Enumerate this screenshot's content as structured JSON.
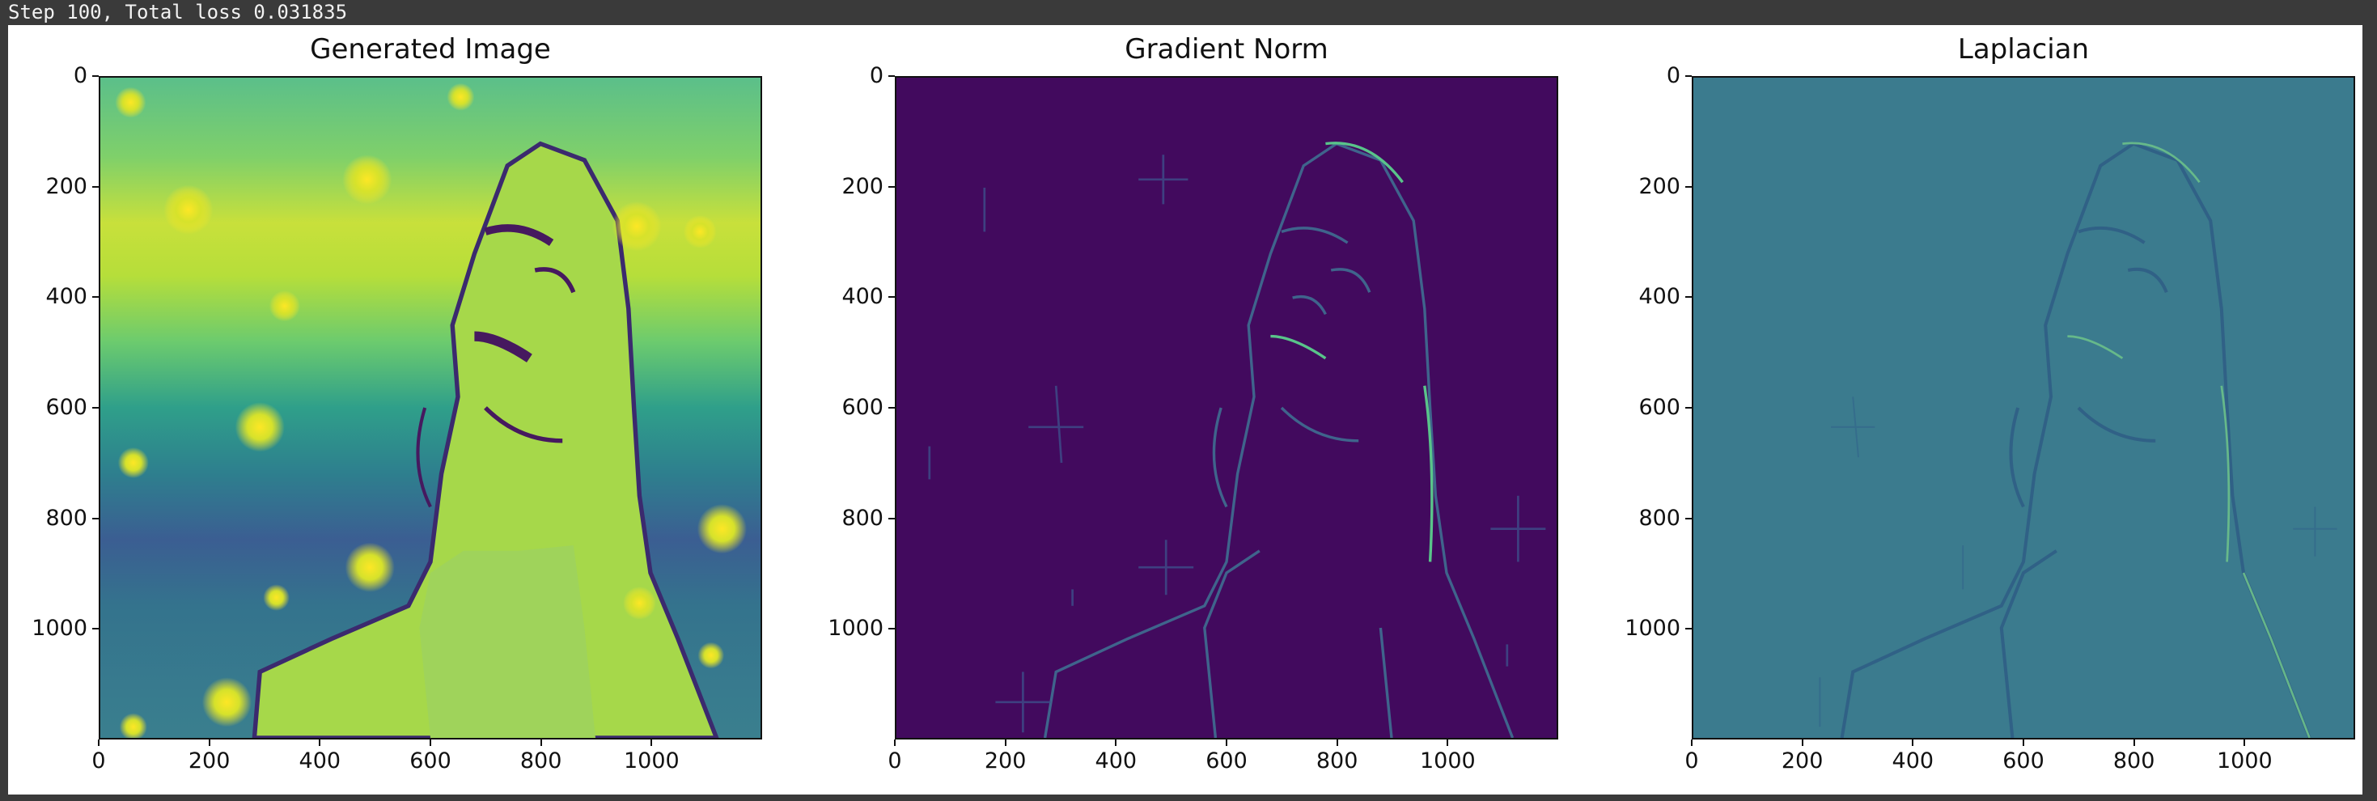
{
  "status": {
    "text": "Step 100, Total loss 0.031835"
  },
  "colors": {
    "status_bg": "#3a3a3a",
    "viridis_dark": "#440154",
    "viridis_teal": "#3b7b8e",
    "viridis_yellow": "#fde725",
    "viridis_green": "#b5de2b"
  },
  "panels": [
    {
      "title": "Generated Image",
      "colormap": "viridis",
      "x_ticks": [
        "0",
        "200",
        "400",
        "600",
        "800",
        "1000"
      ],
      "y_ticks": [
        "0",
        "200",
        "400",
        "600",
        "800",
        "1000"
      ],
      "x_range": [
        0,
        1200
      ],
      "y_range": [
        0,
        1200
      ]
    },
    {
      "title": "Gradient Norm",
      "colormap": "viridis",
      "x_ticks": [
        "0",
        "200",
        "400",
        "600",
        "800",
        "1000"
      ],
      "y_ticks": [
        "0",
        "200",
        "400",
        "600",
        "800",
        "1000"
      ],
      "x_range": [
        0,
        1200
      ],
      "y_range": [
        0,
        1200
      ]
    },
    {
      "title": "Laplacian",
      "colormap": "viridis",
      "x_ticks": [
        "0",
        "200",
        "400",
        "600",
        "800",
        "1000"
      ],
      "y_ticks": [
        "0",
        "200",
        "400",
        "600",
        "800",
        "1000"
      ],
      "x_range": [
        0,
        1200
      ],
      "y_range": [
        0,
        1200
      ]
    }
  ]
}
